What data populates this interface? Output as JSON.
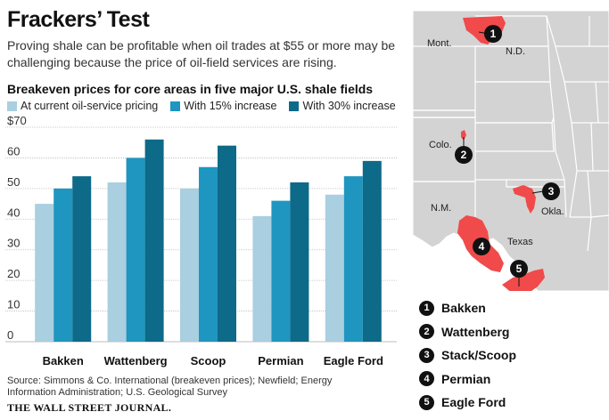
{
  "header": {
    "title": "Frackers’ Test",
    "subtitle": "Proving shale can be profitable when oil trades at $55 or more may be challenging because the price of oil-field services are rising."
  },
  "chart_data": {
    "type": "bar",
    "title": "Breakeven prices for core areas in five major U.S. shale fields",
    "categories": [
      "Bakken",
      "Wattenberg",
      "Scoop",
      "Permian",
      "Eagle Ford"
    ],
    "series": [
      {
        "name": "At current oil-service pricing",
        "color": "#a9cfe0",
        "values": [
          45,
          52,
          50,
          41,
          48
        ]
      },
      {
        "name": "With 15% increase",
        "color": "#1e96c0",
        "values": [
          50,
          60,
          57,
          46,
          54
        ]
      },
      {
        "name": "With 30% increase",
        "color": "#0d6a88",
        "values": [
          54,
          66,
          64,
          52,
          59
        ]
      }
    ],
    "ylim": [
      0,
      70
    ],
    "yticks": [
      "$70",
      "60",
      "50",
      "40",
      "30",
      "20",
      "10",
      "0"
    ],
    "ytick_values": [
      70,
      60,
      50,
      40,
      30,
      20,
      10,
      0
    ],
    "grid": true
  },
  "source": "Source: Simmons & Co. International (breakeven prices); Newfield; Energy Information Administration; U.S. Geological Survey",
  "publisher": "THE WALL STREET JOURNAL.",
  "map": {
    "state_labels": [
      "Mont.",
      "N.D.",
      "Colo.",
      "N.M.",
      "Okla.",
      "Texas"
    ],
    "highlight_color": "#f04a4a",
    "markers": [
      "1",
      "2",
      "3",
      "4",
      "5"
    ]
  },
  "map_legend": [
    {
      "num": "1",
      "label": "Bakken"
    },
    {
      "num": "2",
      "label": "Wattenberg"
    },
    {
      "num": "3",
      "label": "Stack/Scoop"
    },
    {
      "num": "4",
      "label": "Permian"
    },
    {
      "num": "5",
      "label": "Eagle Ford"
    }
  ]
}
